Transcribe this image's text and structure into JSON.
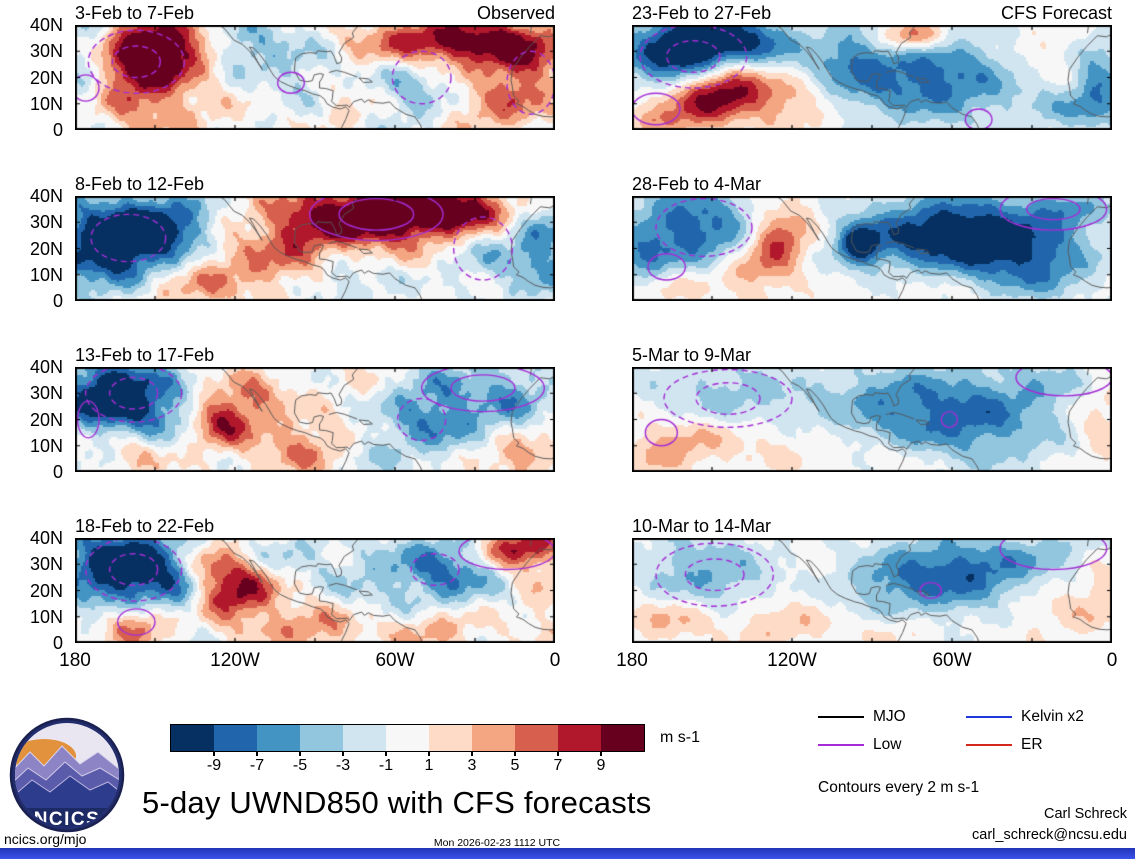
{
  "chart_data": {
    "type": "heatmap",
    "title": "5-day UWND850 with CFS forecasts",
    "variable": "850-hPa zonal wind anomaly (UWND850)",
    "units": "m s-1",
    "columns": [
      "Observed",
      "CFS Forecast"
    ],
    "lon_domain": [
      -180,
      0
    ],
    "lat_domain": [
      0,
      40
    ],
    "x_tick_labels": [
      "180",
      "120W",
      "60W",
      "0"
    ],
    "y_tick_labels": [
      "40N",
      "30N",
      "20N",
      "10N",
      "0"
    ],
    "contour_color": "#a42cd6",
    "colorbar": {
      "levels": [
        -9,
        -7,
        -5,
        -3,
        -1,
        1,
        3,
        5,
        7,
        9
      ],
      "colors": [
        "#053061",
        "#2166ac",
        "#4393c3",
        "#92c5de",
        "#d1e5f0",
        "#f7f7f7",
        "#fddbc7",
        "#f4a582",
        "#d6604d",
        "#b2182b",
        "#67001f"
      ],
      "label": "m s-1"
    },
    "blob_format": [
      "lon",
      "lat",
      "sigma_lon_deg",
      "sigma_lat_deg",
      "amplitude_m_s"
    ],
    "contour_format": [
      "lon",
      "lat",
      "radius_lon_deg",
      "radius_lat_deg",
      "line_style"
    ],
    "panels": [
      {
        "column": "Observed",
        "title": "3-Feb to 7-Feb",
        "blobs": [
          [
            -149,
            31,
            13,
            9,
            12
          ],
          [
            -158,
            20,
            11,
            10,
            6
          ],
          [
            -117,
            33,
            9,
            7,
            -5
          ],
          [
            -95,
            24,
            11,
            12,
            -3
          ],
          [
            -81,
            10,
            9,
            8,
            2
          ],
          [
            -40,
            34,
            22,
            6,
            11
          ],
          [
            -13,
            26,
            11,
            10,
            7
          ],
          [
            -54,
            16,
            11,
            10,
            -4
          ],
          [
            -22,
            8,
            13,
            7,
            4
          ],
          [
            -144,
            6,
            14,
            6,
            3
          ],
          [
            -176,
            28,
            7,
            12,
            -4
          ]
        ],
        "contours": [
          [
            -157,
            26,
            18,
            12,
            "dashed"
          ],
          [
            -157,
            26,
            9,
            6,
            "dashed"
          ],
          [
            -176,
            16,
            5,
            5,
            "solid"
          ],
          [
            -50,
            20,
            11,
            10,
            "dashed"
          ],
          [
            -9,
            18,
            9,
            12,
            "dashed"
          ],
          [
            -99,
            18,
            5,
            4,
            "solid"
          ]
        ]
      },
      {
        "column": "Observed",
        "title": "8-Feb to 12-Feb",
        "blobs": [
          [
            -166,
            22,
            16,
            12,
            -13
          ],
          [
            -144,
            29,
            13,
            8,
            -7
          ],
          [
            -126,
            16,
            9,
            10,
            3
          ],
          [
            -67,
            33,
            23,
            8,
            14
          ],
          [
            -36,
            35,
            14,
            5,
            9
          ],
          [
            -99,
            20,
            11,
            10,
            5
          ],
          [
            -144,
            6,
            14,
            6,
            4
          ],
          [
            -81,
            7,
            13,
            6,
            -3
          ],
          [
            -5,
            20,
            9,
            14,
            -6
          ],
          [
            -27,
            18,
            11,
            10,
            -3
          ],
          [
            -112,
            10,
            9,
            6,
            2
          ]
        ],
        "contours": [
          [
            -67,
            33,
            25,
            10,
            "solid"
          ],
          [
            -67,
            33,
            14,
            6,
            "solid"
          ],
          [
            -27,
            20,
            11,
            12,
            "dashed"
          ],
          [
            -160,
            24,
            14,
            9,
            "dashed"
          ]
        ]
      },
      {
        "column": "Observed",
        "title": "13-Feb to 17-Feb",
        "blobs": [
          [
            -166,
            30,
            14,
            10,
            -13
          ],
          [
            -144,
            22,
            11,
            8,
            -4
          ],
          [
            -126,
            20,
            9,
            7,
            9
          ],
          [
            -112,
            30,
            9,
            6,
            4
          ],
          [
            -94,
            10,
            13,
            8,
            5
          ],
          [
            -68,
            32,
            11,
            8,
            2
          ],
          [
            -45,
            24,
            18,
            12,
            -7
          ],
          [
            -14,
            32,
            9,
            10,
            -4
          ],
          [
            -14,
            6,
            11,
            6,
            5
          ],
          [
            -72,
            6,
            11,
            6,
            -2
          ],
          [
            -157,
            8,
            9,
            6,
            3
          ]
        ],
        "contours": [
          [
            -158,
            30,
            18,
            11,
            "dashed"
          ],
          [
            -158,
            30,
            9,
            6,
            "dashed"
          ],
          [
            -27,
            32,
            23,
            9,
            "solid"
          ],
          [
            -27,
            32,
            12,
            5,
            "solid"
          ],
          [
            -50,
            20,
            9,
            8,
            "dashed"
          ],
          [
            -175,
            20,
            4,
            7,
            "solid"
          ]
        ]
      },
      {
        "column": "Observed",
        "title": "18-Feb to 22-Feb",
        "blobs": [
          [
            -162,
            29,
            16,
            11,
            -13
          ],
          [
            -140,
            20,
            9,
            8,
            -4
          ],
          [
            -157,
            8,
            9,
            6,
            7
          ],
          [
            -121,
            20,
            11,
            8,
            10
          ],
          [
            -130,
            30,
            7,
            6,
            4
          ],
          [
            -90,
            6,
            13,
            6,
            5
          ],
          [
            -45,
            6,
            13,
            6,
            4
          ],
          [
            -68,
            26,
            14,
            12,
            -3
          ],
          [
            -40,
            28,
            13,
            10,
            -7
          ],
          [
            -13,
            36,
            11,
            5,
            10
          ],
          [
            -5,
            16,
            7,
            8,
            2
          ],
          [
            -99,
            34,
            9,
            6,
            -3
          ]
        ],
        "contours": [
          [
            -158,
            28,
            18,
            12,
            "dashed"
          ],
          [
            -158,
            28,
            9,
            6,
            "dashed"
          ],
          [
            -18,
            35,
            18,
            7,
            "solid"
          ],
          [
            -45,
            28,
            9,
            6,
            "dashed"
          ],
          [
            -157,
            8,
            7,
            5,
            "solid"
          ]
        ]
      },
      {
        "column": "CFS Forecast",
        "title": "23-Feb to 27-Feb",
        "blobs": [
          [
            -158,
            30,
            16,
            11,
            -14
          ],
          [
            -133,
            34,
            11,
            6,
            -6
          ],
          [
            -144,
            18,
            11,
            7,
            12
          ],
          [
            -158,
            10,
            11,
            7,
            8
          ],
          [
            -121,
            10,
            11,
            7,
            4
          ],
          [
            -99,
            28,
            11,
            10,
            -4
          ],
          [
            -68,
            20,
            25,
            12,
            -8
          ],
          [
            -76,
            36,
            9,
            4,
            8
          ],
          [
            -27,
            28,
            11,
            8,
            2
          ],
          [
            -5,
            18,
            7,
            12,
            -6
          ],
          [
            -18,
            8,
            11,
            6,
            -3
          ],
          [
            -175,
            4,
            7,
            4,
            3
          ]
        ],
        "contours": [
          [
            -157,
            28,
            20,
            12,
            "dashed"
          ],
          [
            -157,
            28,
            10,
            6,
            "dashed"
          ],
          [
            -171,
            8,
            9,
            6,
            "solid"
          ],
          [
            -50,
            4,
            5,
            4,
            "solid"
          ]
        ]
      },
      {
        "column": "CFS Forecast",
        "title": "28-Feb to 4-Mar",
        "blobs": [
          [
            -157,
            28,
            18,
            12,
            -8
          ],
          [
            -176,
            16,
            7,
            8,
            -4
          ],
          [
            -126,
            22,
            8,
            8,
            9
          ],
          [
            -140,
            10,
            9,
            6,
            4
          ],
          [
            -95,
            22,
            5,
            5,
            -9
          ],
          [
            -58,
            25,
            27,
            11,
            -12
          ],
          [
            -27,
            12,
            14,
            8,
            -5
          ],
          [
            -72,
            8,
            11,
            6,
            2
          ],
          [
            -18,
            35,
            11,
            6,
            -4
          ],
          [
            -117,
            34,
            9,
            6,
            2
          ],
          [
            -166,
            6,
            9,
            5,
            3
          ]
        ],
        "contours": [
          [
            -153,
            28,
            18,
            11,
            "dashed"
          ],
          [
            -22,
            35,
            20,
            8,
            "solid"
          ],
          [
            -22,
            35,
            10,
            4,
            "solid"
          ],
          [
            -167,
            13,
            7,
            5,
            "solid"
          ]
        ]
      },
      {
        "column": "CFS Forecast",
        "title": "5-Mar to 9-Mar",
        "blobs": [
          [
            -144,
            29,
            22,
            11,
            -4
          ],
          [
            -58,
            22,
            27,
            13,
            -8
          ],
          [
            -90,
            30,
            14,
            8,
            -2
          ],
          [
            -153,
            16,
            13,
            6,
            3
          ],
          [
            -169,
            8,
            11,
            6,
            4
          ],
          [
            -126,
            10,
            14,
            6,
            2
          ],
          [
            -5,
            20,
            7,
            10,
            3
          ],
          [
            -22,
            35,
            11,
            6,
            -2
          ],
          [
            -81,
            6,
            14,
            5,
            2
          ]
        ],
        "contours": [
          [
            -144,
            28,
            24,
            11,
            "dashed"
          ],
          [
            -144,
            28,
            12,
            6,
            "dashed"
          ],
          [
            -18,
            36,
            18,
            7,
            "solid"
          ],
          [
            -169,
            15,
            6,
            5,
            "solid"
          ],
          [
            -61,
            20,
            3,
            3,
            "solid"
          ]
        ]
      },
      {
        "column": "CFS Forecast",
        "title": "10-Mar to 14-Mar",
        "blobs": [
          [
            -153,
            27,
            18,
            11,
            -5
          ],
          [
            -68,
            26,
            18,
            11,
            -7
          ],
          [
            -45,
            28,
            14,
            8,
            -4
          ],
          [
            -90,
            20,
            11,
            8,
            -2
          ],
          [
            -166,
            10,
            11,
            6,
            4
          ],
          [
            -126,
            8,
            13,
            6,
            3
          ],
          [
            -81,
            6,
            11,
            5,
            2
          ],
          [
            -18,
            12,
            13,
            6,
            2
          ],
          [
            -22,
            35,
            13,
            6,
            -3
          ],
          [
            -5,
            22,
            5,
            8,
            2
          ]
        ],
        "contours": [
          [
            -149,
            26,
            22,
            12,
            "dashed"
          ],
          [
            -149,
            26,
            11,
            6,
            "dashed"
          ],
          [
            -22,
            36,
            20,
            8,
            "solid"
          ],
          [
            -68,
            20,
            4,
            3,
            "solid"
          ]
        ]
      }
    ]
  },
  "legend": {
    "entries": [
      {
        "label": "MJO",
        "color": "#000000"
      },
      {
        "label": "Low",
        "color": "#a42cd6"
      },
      {
        "label": "Kelvin x2",
        "color": "#2038d8"
      },
      {
        "label": "ER",
        "color": "#d4281c"
      }
    ],
    "note": "Contours every 2 m s-1"
  },
  "logo": {
    "text": "NCICS"
  },
  "footer": {
    "site": "ncics.org/mjo",
    "timestamp": "Mon 2026-02-23 1112 UTC",
    "credit_name": "Carl Schreck",
    "credit_email": "carl_schreck@ncsu.edu"
  }
}
